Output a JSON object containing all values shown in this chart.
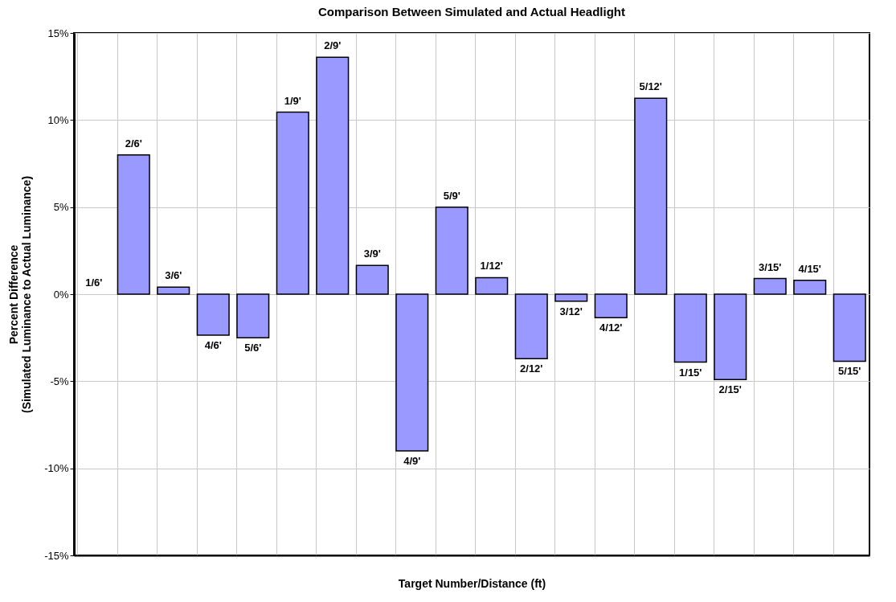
{
  "chart_data": {
    "type": "bar",
    "title": "Comparison Between Simulated and Actual Headlight",
    "xlabel": "Target Number/Distance (ft)",
    "ylabel": [
      "Percent Difference",
      "(Simulated Luminance to Actual Luminance)"
    ],
    "categories": [
      "1/6'",
      "2/6'",
      "3/6'",
      "4/6'",
      "5/6'",
      "1/9'",
      "2/9'",
      "3/9'",
      "4/9'",
      "5/9'",
      "1/12'",
      "2/12'",
      "3/12'",
      "4/12'",
      "5/12'",
      "1/15'",
      "2/15'",
      "3/15'",
      "4/15'",
      "5/15'"
    ],
    "values": [
      0,
      8.0,
      0.4,
      -2.35,
      -2.5,
      10.45,
      13.6,
      1.65,
      -9.0,
      5.0,
      0.95,
      -3.7,
      -0.4,
      -1.35,
      11.25,
      -3.9,
      -4.9,
      0.9,
      0.8,
      -3.85
    ],
    "color": "#9999ff",
    "ylim": [
      -15,
      15
    ],
    "yticks": [
      {
        "value": -15,
        "label": "-15%"
      },
      {
        "value": -10,
        "label": "-10%"
      },
      {
        "value": -5,
        "label": "-5%"
      },
      {
        "value": 0,
        "label": "0%"
      },
      {
        "value": 5,
        "label": "5%"
      },
      {
        "value": 10,
        "label": "10%"
      },
      {
        "value": 15,
        "label": "15%"
      }
    ],
    "grid": true
  }
}
